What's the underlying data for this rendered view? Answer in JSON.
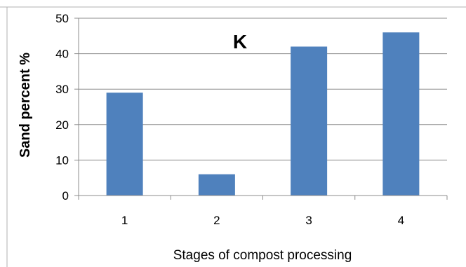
{
  "chart_data": {
    "type": "bar",
    "title": "K",
    "xlabel": "Stages of compost processing",
    "ylabel": "Sand percent %",
    "categories": [
      "1",
      "2",
      "3",
      "4"
    ],
    "values": [
      29,
      6,
      42,
      46
    ],
    "ylim": [
      0,
      50
    ],
    "yticks": [
      "0",
      "10",
      "20",
      "30",
      "40",
      "50"
    ],
    "grid": true,
    "legend": "none",
    "bar_color": "#4f81bd",
    "grid_color": "#8c8c8c"
  }
}
